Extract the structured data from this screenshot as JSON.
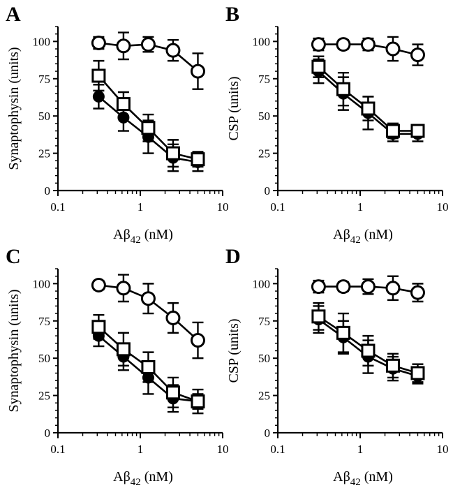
{
  "chart_data": [
    {
      "panel": "A",
      "type": "scatter",
      "xlabel": "Aβ42 (nM)",
      "xlabel_parts": {
        "main": "Aβ",
        "sub": "42",
        "unit": " (nM)"
      },
      "ylabel": "Synaptophysin (units)",
      "xscale": "log",
      "xlim": [
        0.1,
        10
      ],
      "ylim": [
        0,
        110
      ],
      "x_ticks": [
        0.1,
        1,
        10
      ],
      "x_tick_labels": [
        "0.1",
        "1",
        "10"
      ],
      "y_ticks": [
        0,
        25,
        50,
        75,
        100
      ],
      "y_tick_labels": [
        "0",
        "25",
        "50",
        "75",
        "100"
      ],
      "x": [
        0.3125,
        0.625,
        1.25,
        2.5,
        5
      ],
      "series": [
        {
          "marker": "open-circle",
          "values": [
            99,
            97,
            98,
            94,
            80
          ],
          "errors": [
            4,
            9,
            5,
            7,
            12
          ]
        },
        {
          "marker": "open-square",
          "values": [
            77,
            58,
            42,
            25,
            21
          ],
          "errors": [
            10,
            8,
            9,
            9,
            5
          ]
        },
        {
          "marker": "filled-circle",
          "values": [
            63,
            49,
            36,
            22,
            19
          ],
          "errors": [
            8,
            9,
            11,
            9,
            6
          ]
        }
      ]
    },
    {
      "panel": "B",
      "type": "scatter",
      "xlabel": "Aβ42 (nM)",
      "xlabel_parts": {
        "main": "Aβ",
        "sub": "42",
        "unit": " (nM)"
      },
      "ylabel": "CSP (units)",
      "xscale": "log",
      "xlim": [
        0.1,
        10
      ],
      "ylim": [
        0,
        110
      ],
      "x_ticks": [
        0.1,
        1,
        10
      ],
      "x_tick_labels": [
        "0.1",
        "1",
        "10"
      ],
      "y_ticks": [
        0,
        25,
        50,
        75,
        100
      ],
      "y_tick_labels": [
        "0",
        "25",
        "50",
        "75",
        "100"
      ],
      "x": [
        0.3125,
        0.625,
        1.25,
        2.5,
        5
      ],
      "series": [
        {
          "marker": "open-circle",
          "values": [
            98,
            98,
            98,
            95,
            91
          ],
          "errors": [
            4,
            3,
            4,
            8,
            7
          ]
        },
        {
          "marker": "open-square",
          "values": [
            83,
            68,
            55,
            40,
            40
          ],
          "errors": [
            7,
            11,
            8,
            5,
            4
          ]
        },
        {
          "marker": "filled-circle",
          "values": [
            80,
            65,
            52,
            38,
            38
          ],
          "errors": [
            8,
            11,
            11,
            5,
            5
          ]
        }
      ]
    },
    {
      "panel": "C",
      "type": "scatter",
      "xlabel": "Aβ42 (nM)",
      "xlabel_parts": {
        "main": "Aβ",
        "sub": "42",
        "unit": " (nM)"
      },
      "ylabel": "Synaptophysin (units)",
      "xscale": "log",
      "xlim": [
        0.1,
        10
      ],
      "ylim": [
        0,
        110
      ],
      "x_ticks": [
        0.1,
        1,
        10
      ],
      "x_tick_labels": [
        "0.1",
        "1",
        "10"
      ],
      "y_ticks": [
        0,
        25,
        50,
        75,
        100
      ],
      "y_tick_labels": [
        "0",
        "25",
        "50",
        "75",
        "100"
      ],
      "x": [
        0.3125,
        0.625,
        1.25,
        2.5,
        5
      ],
      "series": [
        {
          "marker": "open-circle",
          "values": [
            99,
            97,
            90,
            77,
            62
          ],
          "errors": [
            3,
            9,
            10,
            10,
            12
          ]
        },
        {
          "marker": "open-square",
          "values": [
            71,
            56,
            44,
            27,
            21
          ],
          "errors": [
            8,
            11,
            10,
            10,
            5
          ]
        },
        {
          "marker": "filled-circle",
          "values": [
            65,
            51,
            37,
            23,
            21
          ],
          "errors": [
            7,
            9,
            11,
            9,
            8
          ]
        }
      ]
    },
    {
      "panel": "D",
      "type": "scatter",
      "xlabel": "Aβ42 (nM)",
      "xlabel_parts": {
        "main": "Aβ",
        "sub": "42",
        "unit": " (nM)"
      },
      "ylabel": "CSP (units)",
      "xscale": "log",
      "xlim": [
        0.1,
        10
      ],
      "ylim": [
        0,
        110
      ],
      "x_ticks": [
        0.1,
        1,
        10
      ],
      "x_tick_labels": [
        "0.1",
        "1",
        "10"
      ],
      "y_ticks": [
        0,
        25,
        50,
        75,
        100
      ],
      "y_tick_labels": [
        "0",
        "25",
        "50",
        "75",
        "100"
      ],
      "x": [
        0.3125,
        0.625,
        1.25,
        2.5,
        5
      ],
      "series": [
        {
          "marker": "open-circle",
          "values": [
            98,
            98,
            98,
            97,
            94
          ],
          "errors": [
            4,
            3,
            5,
            8,
            6
          ]
        },
        {
          "marker": "open-square",
          "values": [
            78,
            67,
            55,
            45,
            40
          ],
          "errors": [
            9,
            13,
            10,
            8,
            6
          ]
        },
        {
          "marker": "filled-circle",
          "values": [
            76,
            64,
            51,
            43,
            38
          ],
          "errors": [
            9,
            11,
            11,
            8,
            5
          ]
        }
      ]
    }
  ]
}
